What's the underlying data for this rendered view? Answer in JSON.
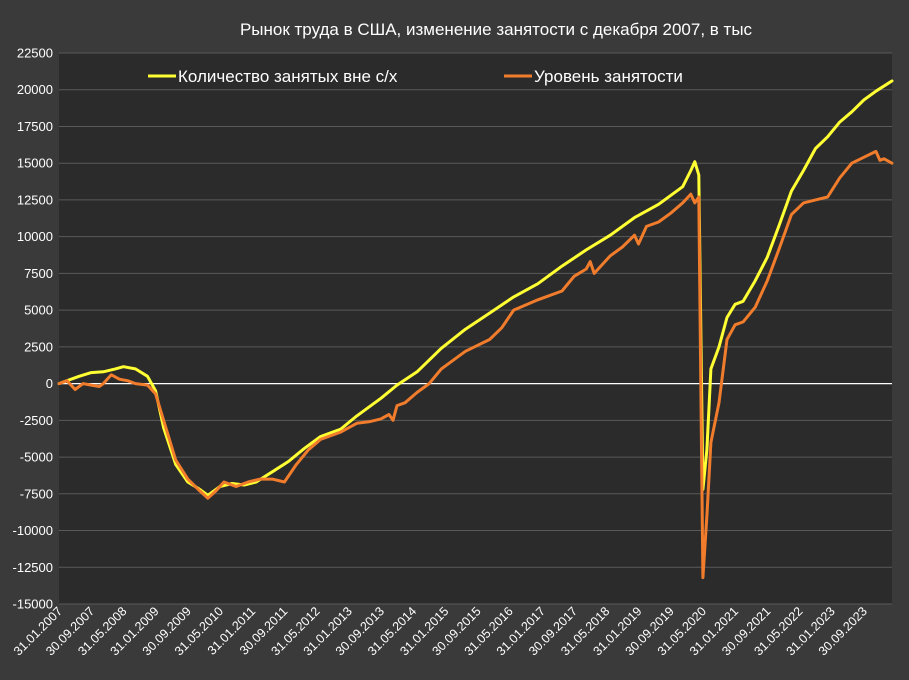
{
  "chart_data": {
    "type": "line",
    "title": "Рынок труда в США, изменение занятости с декабря 2007, в тыс",
    "xlabel": "",
    "ylabel": "",
    "ylim": [
      -15000,
      22500
    ],
    "y_ticks": [
      22500,
      20000,
      17500,
      15000,
      12500,
      10000,
      7500,
      5000,
      2500,
      0,
      -2500,
      -5000,
      -7500,
      -10000,
      -12500,
      -15000
    ],
    "x_tick_labels": [
      "31.01.2007",
      "30.09.2007",
      "31.05.2008",
      "31.01.2009",
      "30.09.2009",
      "31.05.2010",
      "31.01.2011",
      "30.09.2011",
      "31.05.2012",
      "31.01.2013",
      "30.09.2013",
      "31.05.2014",
      "31.01.2015",
      "30.09.2015",
      "31.05.2016",
      "31.01.2017",
      "30.09.2017",
      "31.05.2018",
      "31.01.2019",
      "30.09.2019",
      "31.05.2020",
      "31.01.2021",
      "30.09.2021",
      "31.05.2022",
      "31.01.2023",
      "30.09.2023"
    ],
    "x_range": [
      "2007-01",
      "2024-04"
    ],
    "grid": true,
    "legend_position": "top",
    "background": "#2b2b2b",
    "series": [
      {
        "name": "Количество занятых вне с/х",
        "color": "#ffff33",
        "points": [
          [
            "2007-01",
            0
          ],
          [
            "2007-06",
            500
          ],
          [
            "2007-09",
            750
          ],
          [
            "2007-12",
            800
          ],
          [
            "2008-03",
            1000
          ],
          [
            "2008-05",
            1150
          ],
          [
            "2008-08",
            1000
          ],
          [
            "2008-11",
            500
          ],
          [
            "2009-01",
            -500
          ],
          [
            "2009-03",
            -3000
          ],
          [
            "2009-06",
            -5500
          ],
          [
            "2009-09",
            -6700
          ],
          [
            "2009-12",
            -7200
          ],
          [
            "2010-02",
            -7600
          ],
          [
            "2010-05",
            -7000
          ],
          [
            "2010-08",
            -6800
          ],
          [
            "2010-11",
            -6900
          ],
          [
            "2011-02",
            -6700
          ],
          [
            "2011-06",
            -6000
          ],
          [
            "2011-10",
            -5300
          ],
          [
            "2012-02",
            -4400
          ],
          [
            "2012-06",
            -3600
          ],
          [
            "2012-11",
            -3100
          ],
          [
            "2013-03",
            -2200
          ],
          [
            "2013-09",
            -1000
          ],
          [
            "2014-01",
            -100
          ],
          [
            "2014-06",
            800
          ],
          [
            "2014-12",
            2400
          ],
          [
            "2015-06",
            3700
          ],
          [
            "2015-12",
            4800
          ],
          [
            "2016-06",
            5900
          ],
          [
            "2016-12",
            6800
          ],
          [
            "2017-06",
            8000
          ],
          [
            "2017-12",
            9100
          ],
          [
            "2018-06",
            10100
          ],
          [
            "2018-12",
            11300
          ],
          [
            "2019-06",
            12200
          ],
          [
            "2019-12",
            13400
          ],
          [
            "2020-02",
            14500
          ],
          [
            "2020-03",
            15100
          ],
          [
            "2020-04",
            14200
          ],
          [
            "2020-05",
            -7200
          ],
          [
            "2020-06",
            -4500
          ],
          [
            "2020-07",
            1000
          ],
          [
            "2020-09",
            2500
          ],
          [
            "2020-11",
            4500
          ],
          [
            "2021-01",
            5400
          ],
          [
            "2021-03",
            5600
          ],
          [
            "2021-06",
            7000
          ],
          [
            "2021-09",
            8600
          ],
          [
            "2021-12",
            10800
          ],
          [
            "2022-03",
            13100
          ],
          [
            "2022-06",
            14500
          ],
          [
            "2022-09",
            16000
          ],
          [
            "2022-12",
            16800
          ],
          [
            "2023-03",
            17800
          ],
          [
            "2023-06",
            18500
          ],
          [
            "2023-09",
            19300
          ],
          [
            "2023-12",
            19900
          ],
          [
            "2024-04",
            20600
          ]
        ]
      },
      {
        "name": "Уровень занятости",
        "color": "#f07c2c",
        "points": [
          [
            "2007-01",
            0
          ],
          [
            "2007-03",
            200
          ],
          [
            "2007-05",
            -400
          ],
          [
            "2007-07",
            0
          ],
          [
            "2007-09",
            -100
          ],
          [
            "2007-11",
            -200
          ],
          [
            "2007-12",
            0
          ],
          [
            "2008-02",
            600
          ],
          [
            "2008-04",
            300
          ],
          [
            "2008-06",
            200
          ],
          [
            "2008-08",
            0
          ],
          [
            "2008-11",
            -100
          ],
          [
            "2009-01",
            -700
          ],
          [
            "2009-03",
            -2500
          ],
          [
            "2009-06",
            -5200
          ],
          [
            "2009-09",
            -6500
          ],
          [
            "2009-12",
            -7300
          ],
          [
            "2010-02",
            -7800
          ],
          [
            "2010-04",
            -7300
          ],
          [
            "2010-06",
            -6700
          ],
          [
            "2010-09",
            -7000
          ],
          [
            "2010-12",
            -6700
          ],
          [
            "2011-03",
            -6500
          ],
          [
            "2011-06",
            -6500
          ],
          [
            "2011-09",
            -6700
          ],
          [
            "2011-12",
            -5500
          ],
          [
            "2012-03",
            -4500
          ],
          [
            "2012-06",
            -3800
          ],
          [
            "2012-11",
            -3300
          ],
          [
            "2013-03",
            -2700
          ],
          [
            "2013-06",
            -2600
          ],
          [
            "2013-09",
            -2400
          ],
          [
            "2013-11",
            -2100
          ],
          [
            "2013-12",
            -2500
          ],
          [
            "2014-01",
            -1500
          ],
          [
            "2014-03",
            -1300
          ],
          [
            "2014-06",
            -600
          ],
          [
            "2014-09",
            0
          ],
          [
            "2014-12",
            1000
          ],
          [
            "2015-06",
            2200
          ],
          [
            "2015-12",
            3000
          ],
          [
            "2016-03",
            3800
          ],
          [
            "2016-06",
            5000
          ],
          [
            "2016-12",
            5700
          ],
          [
            "2017-06",
            6300
          ],
          [
            "2017-09",
            7300
          ],
          [
            "2017-12",
            7800
          ],
          [
            "2018-01",
            8300
          ],
          [
            "2018-02",
            7500
          ],
          [
            "2018-06",
            8700
          ],
          [
            "2018-09",
            9300
          ],
          [
            "2018-12",
            10100
          ],
          [
            "2019-01",
            9500
          ],
          [
            "2019-03",
            10700
          ],
          [
            "2019-06",
            11000
          ],
          [
            "2019-09",
            11600
          ],
          [
            "2019-12",
            12300
          ],
          [
            "2020-01",
            12600
          ],
          [
            "2020-02",
            12900
          ],
          [
            "2020-03",
            12300
          ],
          [
            "2020-04",
            12700
          ],
          [
            "2020-05",
            -13200
          ],
          [
            "2020-06",
            -9000
          ],
          [
            "2020-07",
            -4000
          ],
          [
            "2020-09",
            -1300
          ],
          [
            "2020-11",
            3000
          ],
          [
            "2021-01",
            4000
          ],
          [
            "2021-03",
            4200
          ],
          [
            "2021-06",
            5200
          ],
          [
            "2021-09",
            7000
          ],
          [
            "2021-12",
            9200
          ],
          [
            "2022-03",
            11500
          ],
          [
            "2022-06",
            12300
          ],
          [
            "2022-09",
            12500
          ],
          [
            "2022-12",
            12700
          ],
          [
            "2023-03",
            14000
          ],
          [
            "2023-06",
            15000
          ],
          [
            "2023-09",
            15400
          ],
          [
            "2023-12",
            15800
          ],
          [
            "2024-01",
            15200
          ],
          [
            "2024-02",
            15300
          ],
          [
            "2024-04",
            15000
          ]
        ]
      }
    ]
  }
}
